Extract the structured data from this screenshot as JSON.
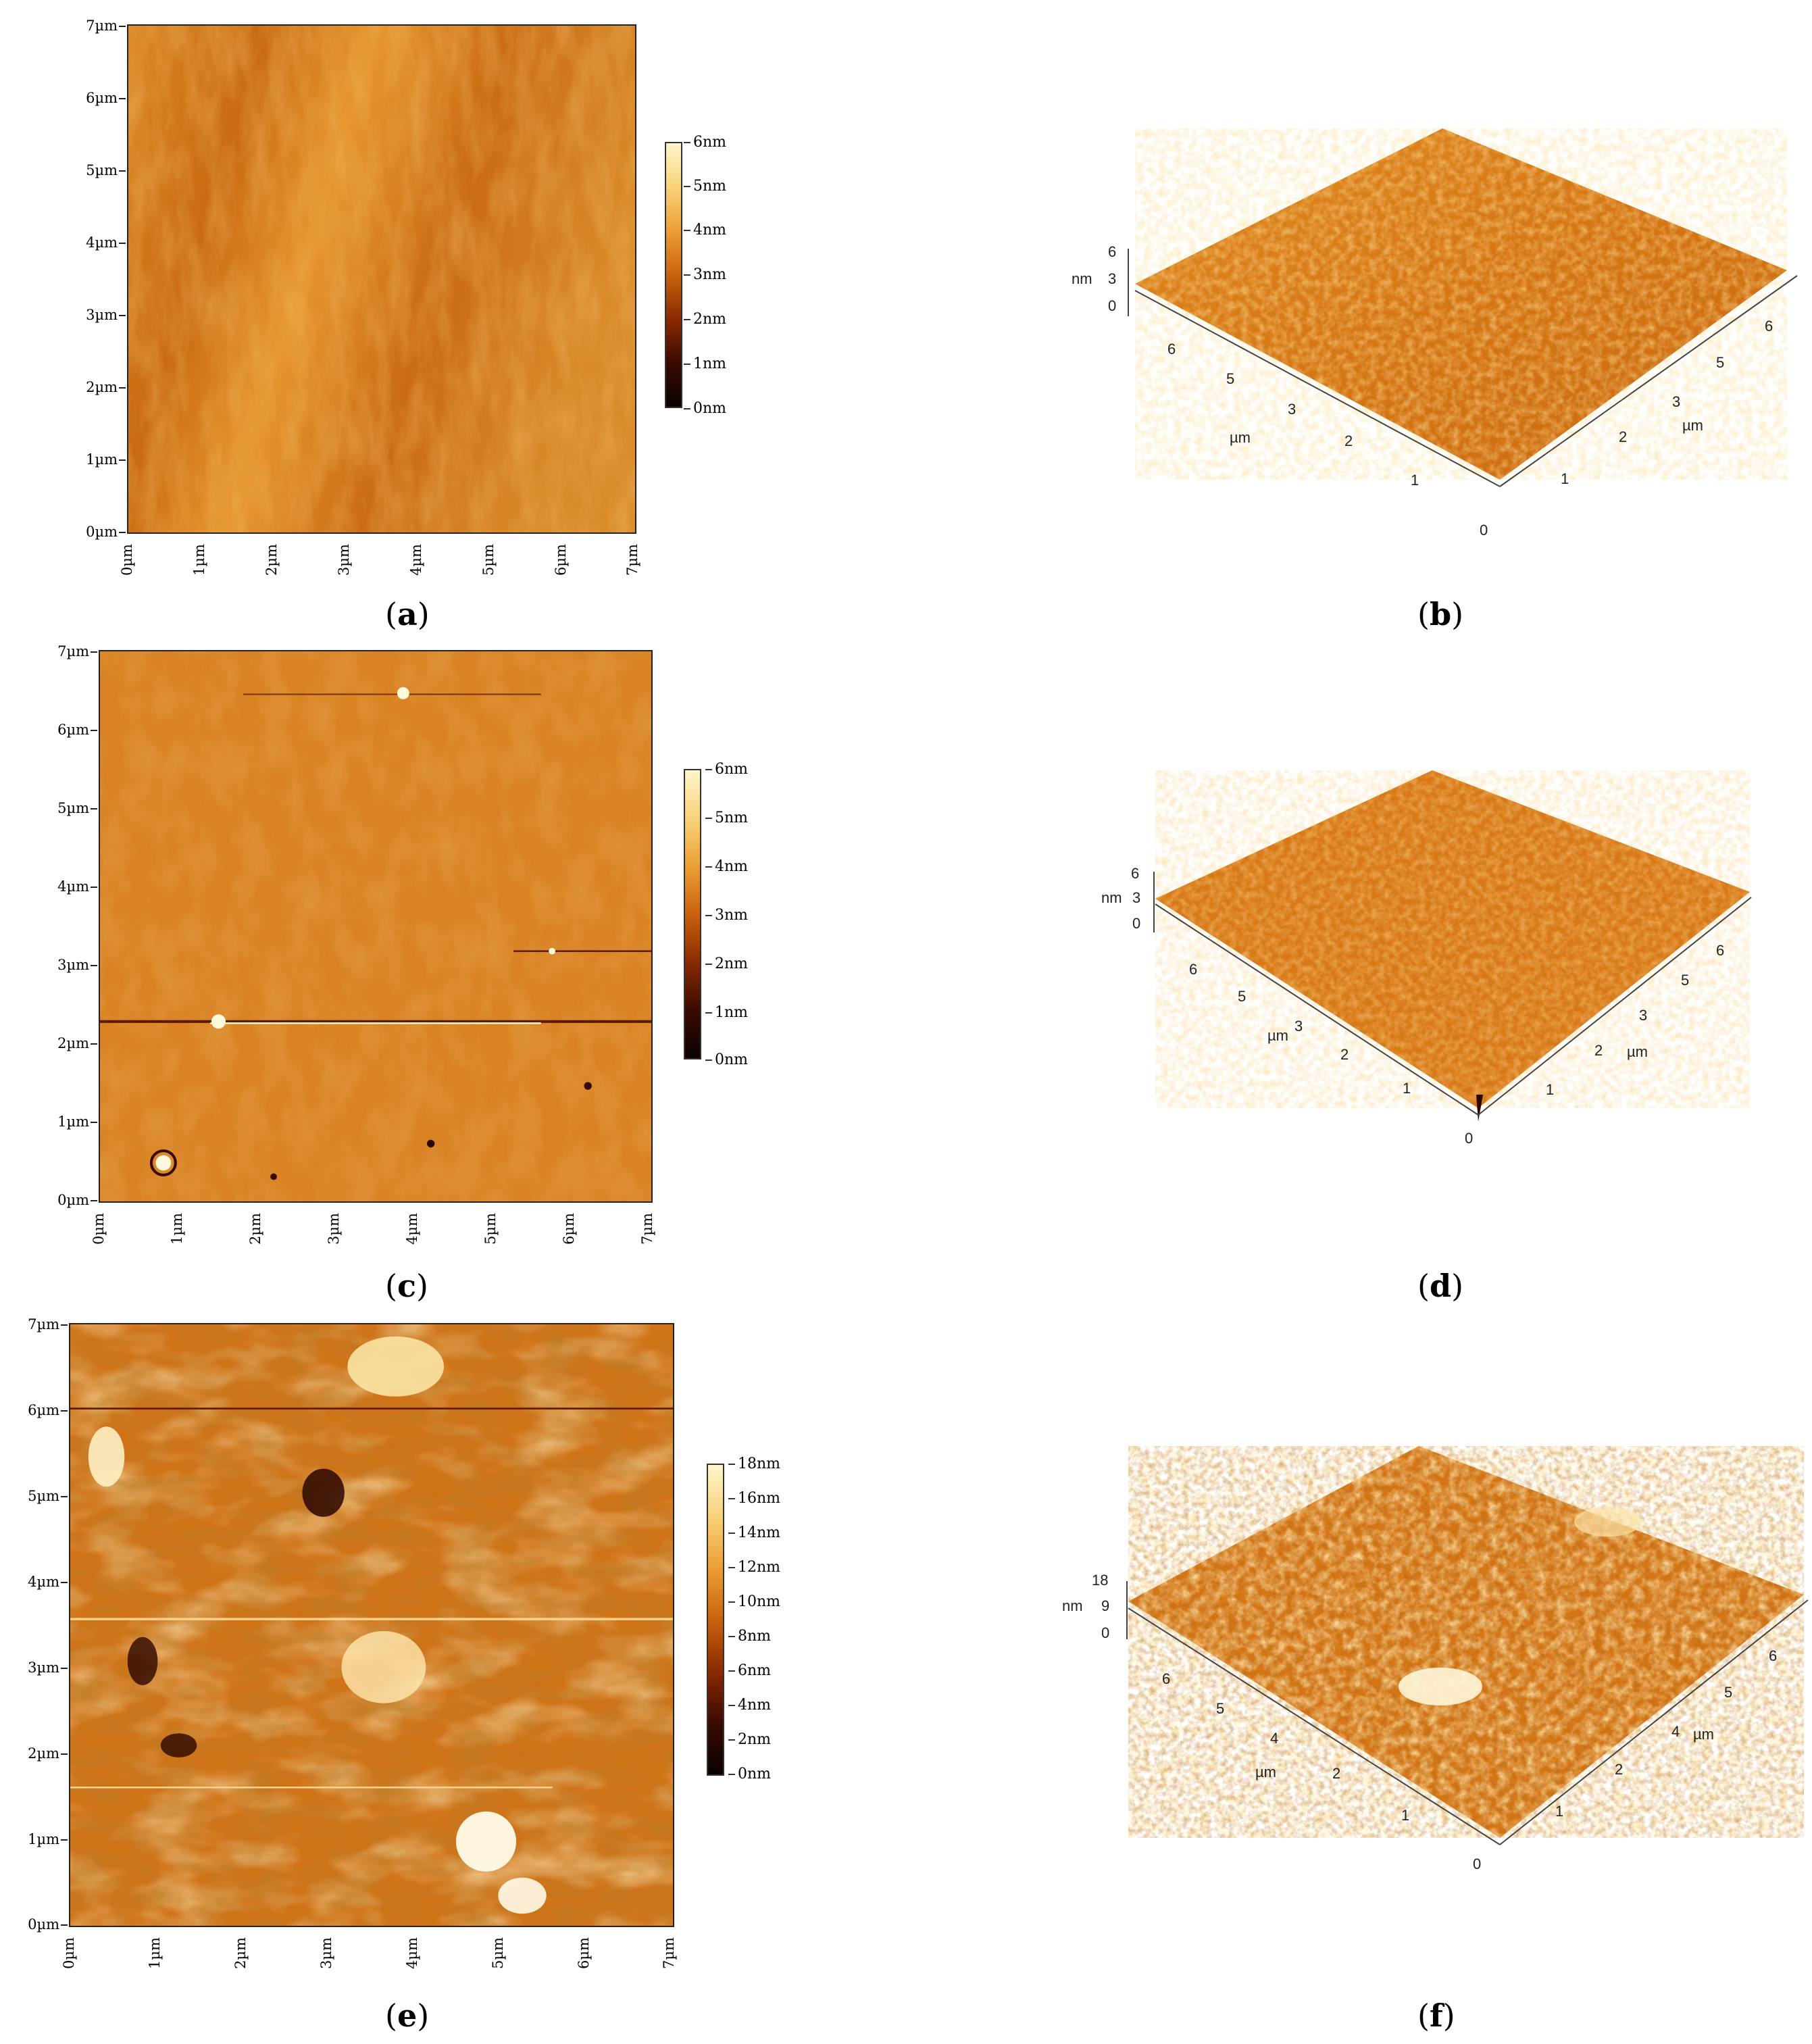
{
  "figure": {
    "panels": [
      {
        "id": "a",
        "type": "afm-2d",
        "y_ticks": [
          "7µm",
          "6µm",
          "5µm",
          "4µm",
          "3µm",
          "2µm",
          "1µm",
          "0µm"
        ],
        "x_ticks": [
          "0µm",
          "1µm",
          "2µm",
          "3µm",
          "4µm",
          "5µm",
          "6µm",
          "7µm"
        ],
        "colorbar_labels": [
          "6nm",
          "5nm",
          "4nm",
          "3nm",
          "2nm",
          "1nm",
          "0nm"
        ],
        "caption_letter": "a"
      },
      {
        "id": "b",
        "type": "afm-3d",
        "z_unit": "nm",
        "z_ticks": [
          "6",
          "3",
          "0"
        ],
        "left_axis_ticks": [
          "6",
          "5",
          "3",
          "2",
          "1"
        ],
        "left_axis_unit": "µm",
        "right_axis_ticks": [
          "6",
          "5",
          "3",
          "2",
          "1"
        ],
        "right_axis_unit": "µm",
        "origin": "0",
        "caption_letter": "b"
      },
      {
        "id": "c",
        "type": "afm-2d",
        "y_ticks": [
          "7µm",
          "6µm",
          "5µm",
          "4µm",
          "3µm",
          "2µm",
          "1µm",
          "0µm"
        ],
        "x_ticks": [
          "0µm",
          "1µm",
          "2µm",
          "3µm",
          "4µm",
          "5µm",
          "6µm",
          "7µm"
        ],
        "colorbar_labels": [
          "6nm",
          "5nm",
          "4nm",
          "3nm",
          "2nm",
          "1nm",
          "0nm"
        ],
        "caption_letter": "c"
      },
      {
        "id": "d",
        "type": "afm-3d",
        "z_unit": "nm",
        "z_ticks": [
          "6",
          "3",
          "0"
        ],
        "left_axis_ticks": [
          "6",
          "5",
          "3",
          "2",
          "1"
        ],
        "left_axis_unit": "µm",
        "right_axis_ticks": [
          "6",
          "5",
          "3",
          "2",
          "1"
        ],
        "right_axis_unit": "µm",
        "origin": "0",
        "caption_letter": "d"
      },
      {
        "id": "e",
        "type": "afm-2d",
        "y_ticks": [
          "7µm",
          "6µm",
          "5µm",
          "4µm",
          "3µm",
          "2µm",
          "1µm",
          "0µm"
        ],
        "x_ticks": [
          "0µm",
          "1µm",
          "2µm",
          "3µm",
          "4µm",
          "5µm",
          "6µm",
          "7µm"
        ],
        "colorbar_labels": [
          "18nm",
          "16nm",
          "14nm",
          "12nm",
          "10nm",
          "8nm",
          "6nm",
          "4nm",
          "2nm",
          "0nm"
        ],
        "caption_letter": "e"
      },
      {
        "id": "f",
        "type": "afm-3d",
        "z_unit": "nm",
        "z_ticks": [
          "18",
          "9",
          "0"
        ],
        "left_axis_ticks": [
          "6",
          "5",
          "4",
          "2",
          "1"
        ],
        "left_axis_unit": "µm",
        "right_axis_ticks": [
          "6",
          "5",
          "4",
          "2",
          "1"
        ],
        "right_axis_unit": "µm",
        "origin": "0",
        "caption_letter": "f"
      }
    ],
    "colors": {
      "afm_dark": "#1a0500",
      "afm_mid_dark": "#8a2a00",
      "afm_mid": "#d77a14",
      "afm_light": "#f2b24c",
      "afm_bright": "#fff6cc"
    }
  }
}
